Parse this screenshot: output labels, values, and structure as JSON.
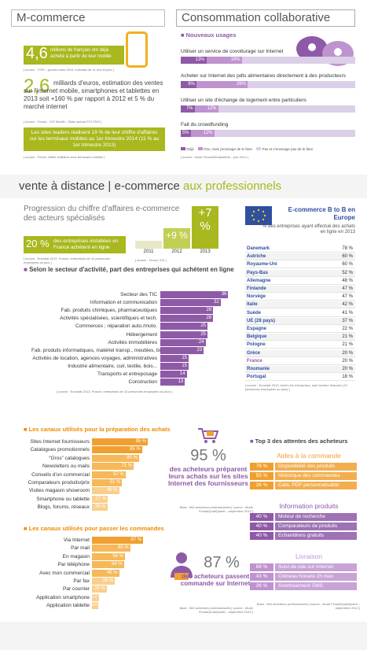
{
  "mcommerce": {
    "title": "M-commerce",
    "stat1_value": "4,6",
    "stat1_text": "millions de français ont déjà acheté à partir de leur mobile",
    "stat1_source": "[ source : TGIS – janvier-mars 2014, individus de 11 ans et plus ]",
    "stat2_value": "2,6",
    "stat2_text": "milliards d'euros, estimation des ventes sur l'internet mobile, smartphones et tablettes en 2013 soit +160 % par rapport à 2012 et 5 % du marché internet",
    "stat2_source": "[ source : Fevad – ICE Mobile – Bilan spécial TF1/TNS ]",
    "stat3_text": "Les sites leaders réalisent 19 % de leur chiffre d'affaires sur les terminaux mobiles au 1er trimestre 2014 (11 % au 1er trimestre 2013)",
    "stat3_source": "[ source : Fevad, chiffre d'affaires tous terminaux mobiles ]"
  },
  "collab": {
    "title": "Consommation collaborative",
    "subtitle": "Nouveaux usages",
    "items": [
      {
        "label": "Utiliser un service de covoiturage sur Internet",
        "done": "13%",
        "heard": "18%"
      },
      {
        "label": "Acheter sur Internet des pdts alimentaires directement à des producteurs",
        "done": "8%",
        "heard": "26%"
      },
      {
        "label": "Utiliser un site d'échange de logement entre particuliers",
        "done": "7%",
        "heard": "12%"
      },
      {
        "label": "Fait du crowdfunding",
        "done": "5%",
        "heard": "12%"
      }
    ],
    "legend": [
      "Déjà",
      "Pas, mais j'envisage de le faire",
      "Pas et n'envisage pas de le faire"
    ],
    "source": "[ source : étude Fevad/Médiamétrie – juin 2014 ]"
  },
  "vad": {
    "title_part1": "vente à distance | e-commerce",
    "title_part2": "aux professionnels"
  },
  "progression": {
    "title": "Progression du chiffre d'affaires e-commerce des acteurs spécialisés",
    "stat_value": "20 %",
    "stat_text": "des entreprises installées en France achètent en ligne",
    "stat_source": "[ source : Eurostat 2013, France, entreprises de 10 personnes employées au plus ]",
    "years": [
      "2011",
      "2012",
      "2013"
    ],
    "growth": [
      "",
      "+9 %",
      "+7 %"
    ],
    "source": "[ source : Fevad, ICE ]"
  },
  "europe": {
    "title": "E-commerce B to B en Europe",
    "subtitle": "% des entreprises ayant effectué des achats en ligne en 2013",
    "countries": [
      {
        "name": "Danemark",
        "value": "78 %"
      },
      {
        "name": "Autriche",
        "value": "60 %"
      },
      {
        "name": "Royaume-Uni",
        "value": "60 %"
      },
      {
        "name": "Pays-Bas",
        "value": "52 %"
      },
      {
        "name": "Allemagne",
        "value": "48 %"
      },
      {
        "name": "Finlande",
        "value": "47 %"
      },
      {
        "name": "Norvège",
        "value": "47 %"
      },
      {
        "name": "Italie",
        "value": "42 %"
      },
      {
        "name": "Suède",
        "value": "41 %"
      },
      {
        "name": "UE (28 pays)",
        "value": "37 %"
      },
      {
        "name": "Espagne",
        "value": "22 %"
      },
      {
        "name": "Belgique",
        "value": "21 %"
      },
      {
        "name": "Pologne",
        "value": "21 %"
      },
      {
        "name": "Grèce",
        "value": "20 %"
      },
      {
        "name": "France",
        "value": "20 %"
      },
      {
        "name": "Roumanie",
        "value": "20 %"
      },
      {
        "name": "Portugal",
        "value": "18 %"
      }
    ],
    "source": "[ source : Eurostat 2013, toutes les entreprises, sauf secteur financier (10 personnes employées au plus) ]"
  },
  "secteur": {
    "title": "Selon le secteur d'activité, part des entreprises qui achètent en ligne",
    "source": "[ source : Eurostat 2013, France, entreprises de 10 personnes employées au plus ]"
  },
  "chart_data": [
    {
      "type": "bar",
      "title": "Selon le secteur d'activité, part des entreprises qui achètent en ligne",
      "categories": [
        "Secteur des TIC",
        "Information et communication",
        "Fab. produits chimiques, pharmaceutiques",
        "Activités spécialisées, scientifiques et tech.",
        "Commerces ; réparation auto./moto.",
        "Hébergement",
        "Activités immobilières",
        "Fab. produits informatiques, matériel transp., meubles, bijouterie...",
        "Activités de location, agences voyages, administratives",
        "Industrie alimentaire, cuir, textile, bois...",
        "Transports et entreposage",
        "Construction"
      ],
      "values": [
        36,
        32,
        28,
        28,
        25,
        25,
        24,
        23,
        15,
        15,
        14,
        13
      ]
    },
    {
      "type": "bar",
      "title": "Les canaux utilisés pour la préparation des achats",
      "categories": [
        "Sites Internet fournisseurs",
        "Catalogues promotionnels",
        "“Gros” catalogues",
        "Newsletters ou mails",
        "Conseils d'un commercial",
        "Comparateurs produits/prix",
        "Visites magasin showroom",
        "Smartphone ou tablette",
        "Blogs, forums, réseaux"
      ],
      "values": [
        95,
        85,
        80,
        71,
        57,
        51,
        46,
        27,
        26
      ]
    },
    {
      "type": "bar",
      "title": "Les canaux utilisés pour passer les commandes",
      "categories": [
        "Via Internet",
        "Par mail",
        "En magasin",
        "Par téléphone",
        "Avec mon commercial",
        "Par fax",
        "Par courrier",
        "Application smartphone",
        "Application tablette"
      ],
      "values": [
        87,
        65,
        56,
        54,
        46,
        39,
        25,
        12,
        10
      ]
    }
  ],
  "preparation": {
    "title": "Les canaux utilisés pour la préparation des achats",
    "big_value": "95 %",
    "big_text": "des acheteurs préparent leurs achats sur les sites Internet des fournisseurs"
  },
  "commandes": {
    "title": "Les canaux utilisés pour passer les commandes",
    "big_value": "87 %",
    "big_text": "des acheteurs passent commande sur Internet",
    "source": "Base : 564 acheteurs professionnels [ source : étude Fevad/QualiQuanti – septembre 2013 ]"
  },
  "prep_source": "Base : 564 acheteurs professionnels [ source : étude Fevad/QualiQuanti – septembre 2013 ]",
  "top3": {
    "title": "Top 3 des attentes des acheteurs",
    "groups": [
      {
        "name": "Aides à la commande",
        "color": "#f0a030",
        "items": [
          {
            "v": "76 %",
            "t": "Disponibilité des produits"
          },
          {
            "v": "55 %",
            "t": "Historique des commandes"
          },
          {
            "v": "26 %",
            "t": "Cata. PDF personnalisable"
          }
        ]
      },
      {
        "name": "Information produits",
        "color": "#8e5aa7",
        "items": [
          {
            "v": "40 %",
            "t": "Moteur de recherche"
          },
          {
            "v": "40 %",
            "t": "Comparateurs de produits"
          },
          {
            "v": "40 %",
            "t": "Echantillons gratuits"
          }
        ]
      },
      {
        "name": "Livraison",
        "color": "#bf93cf",
        "items": [
          {
            "v": "68 %",
            "t": "Suivi de cde sur Internet"
          },
          {
            "v": "43 %",
            "t": "Créneau horaire 2h max"
          },
          {
            "v": "36 %",
            "t": "Avertissement SMS"
          }
        ]
      }
    ],
    "source": "Base : 564 acheteurs professionnels [ source : étude Fevad/QualiQuanti – septembre 2013 ]"
  }
}
